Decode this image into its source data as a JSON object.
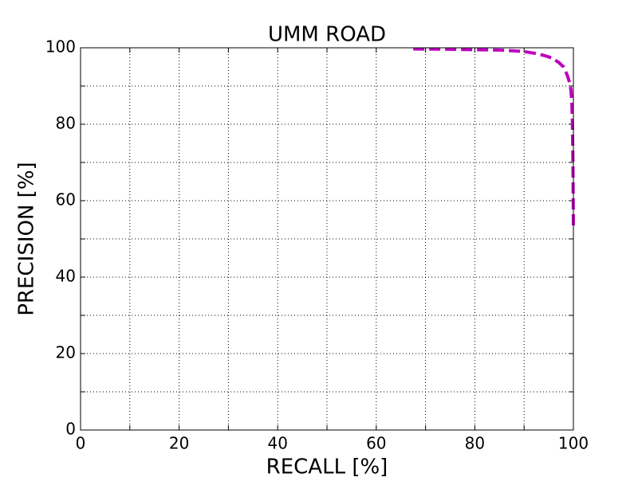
{
  "chart_data": {
    "type": "line",
    "title": "UMM ROAD",
    "x_label": "RECALL [%]",
    "y_label": "PRECISION [%]",
    "series": [
      {
        "color": "#bf00bf",
        "dashed": true,
        "x": [
          67.5,
          75,
          80,
          85,
          88,
          90,
          92,
          94,
          95.5,
          97,
          98,
          98.7,
          99.2,
          99.5,
          99.7,
          99.8,
          99.9,
          100
        ],
        "values": [
          99.7,
          99.6,
          99.5,
          99.4,
          99.2,
          99,
          98.6,
          98,
          97.4,
          96.2,
          95,
          93,
          91,
          89,
          85,
          80,
          70,
          52.5
        ]
      }
    ],
    "xlim": [
      0,
      100
    ],
    "ylim": [
      0,
      100
    ],
    "xticks": [
      0,
      20,
      40,
      60,
      80,
      100
    ],
    "yticks": [
      0,
      20,
      40,
      60,
      80,
      100
    ],
    "xminor": [
      10,
      30,
      50,
      70,
      90
    ],
    "yminor": [
      10,
      30,
      50,
      70,
      90
    ],
    "grid": true
  }
}
